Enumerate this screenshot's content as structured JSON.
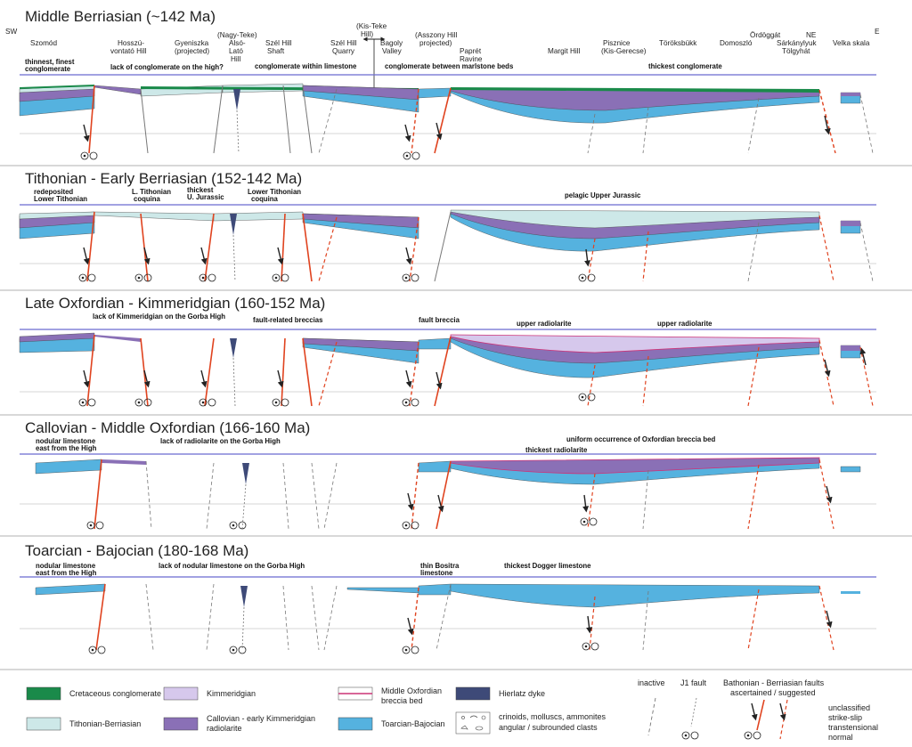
{
  "panels": [
    {
      "title": "Middle Berriasian (~142 Ma)",
      "notes": [
        "thinnest, finest",
        "conglomerate",
        "lack of conglomerate on the high?",
        "conglomerate within limestone",
        "conglomerate between marlstone beds",
        "thickest conglomerate"
      ]
    },
    {
      "title": "Tithonian - Early Berriasian (152-142 Ma)",
      "notes": [
        "redeposited",
        "Lower Tithonian",
        "L. Tithonian",
        "coquina",
        "thickest",
        "U. Jurassic",
        "Lower Tithonian",
        "coquina",
        "pelagic Upper Jurassic"
      ]
    },
    {
      "title": "Late Oxfordian - Kimmeridgian (160-152 Ma)",
      "notes": [
        "lack of Kimmeridgian on the Gorba High",
        "fault-related breccias",
        "fault breccia",
        "upper radiolarite",
        "upper radiolarite"
      ]
    },
    {
      "title": "Callovian - Middle Oxfordian (166-160 Ma)",
      "notes": [
        "nodular limestone",
        "east from the High",
        "lack of radiolarite on the Gorba High",
        "uniform occurrence of Oxfordian breccia bed",
        "thickest radiolarite"
      ]
    },
    {
      "title": "Toarcian - Bajocian (180-168 Ma)",
      "notes": [
        "nodular limestone",
        "east from the High",
        "lack of nodular limestone on the Gorba High",
        "thin Bositra",
        "limestone",
        "thickest Dogger limestone"
      ]
    }
  ],
  "locations": {
    "sw": "SW",
    "ne": "NE",
    "e": "E",
    "szomod": "Szomód",
    "hosszu1": "Hosszú-",
    "hosszu2": "vontató Hill",
    "gyen1": "Gyeniszka",
    "gyen2": "(projected)",
    "nagy1": "(Nagy-Teke)",
    "nagy2": "Alsó-",
    "nagy3": "Lató",
    "nagy4": "Hill",
    "szelsh1": "Szél Hill",
    "szelsh2": "Shaft",
    "szelq1": "Szél Hill",
    "szelq2": "Quarry",
    "kis1": "(Kis-Teke",
    "kis2": "Hill)",
    "bag1": "Bagoly",
    "bag2": "Valley",
    "asz1": "(Asszony Hill",
    "asz2": "projected)",
    "pap1": "Paprét",
    "pap2": "Ravine",
    "margit": "Margit Hill",
    "pisz1": "Pisznice",
    "pisz2": "(Kis-Gerecse)",
    "torok": "Töröksbükk",
    "domos": "Domoszló",
    "ordog": "Ördöggát",
    "sark1": "Sárkánylyuk",
    "sark2": "Tölgyhát",
    "velka": "Velka skala"
  },
  "legend": {
    "cretaceous": "Cretaceous conglomerate",
    "tithonian": "Tithonian-Berriasian",
    "kimmeridgian": "Kimmeridgian",
    "callovian1": "Callovian - early Kimmeridgian",
    "callovian2": "radiolarite",
    "breccia1": "Middle Oxfordian",
    "breccia2": "breccia bed",
    "toarcian": "Toarcian-Bajocian",
    "hierlatz": "Hierlatz dyke",
    "clasts1": "crinoids, molluscs, ammonites",
    "clasts2": "angular / subrounded clasts",
    "inactive": "inactive",
    "j1": "J1 fault",
    "bath1": "Bathonian - Berriasian faults",
    "bath2": "ascertained / suggested",
    "strike1": "unclassified",
    "strike2": "strike-slip",
    "strike3": "transtensional",
    "strike4": "normal"
  },
  "colors": {
    "cretaceous": "#1a8a4a",
    "tithonian": "#cde8e8",
    "kimmeridgian": "#d6c8ec",
    "callovian": "#8a70b6",
    "toarcian": "#55b2df",
    "breccia": "#cc3377",
    "hierlatz": "#3e4a78",
    "fault": "#e0431f",
    "horizon": "#6b6bd0"
  }
}
